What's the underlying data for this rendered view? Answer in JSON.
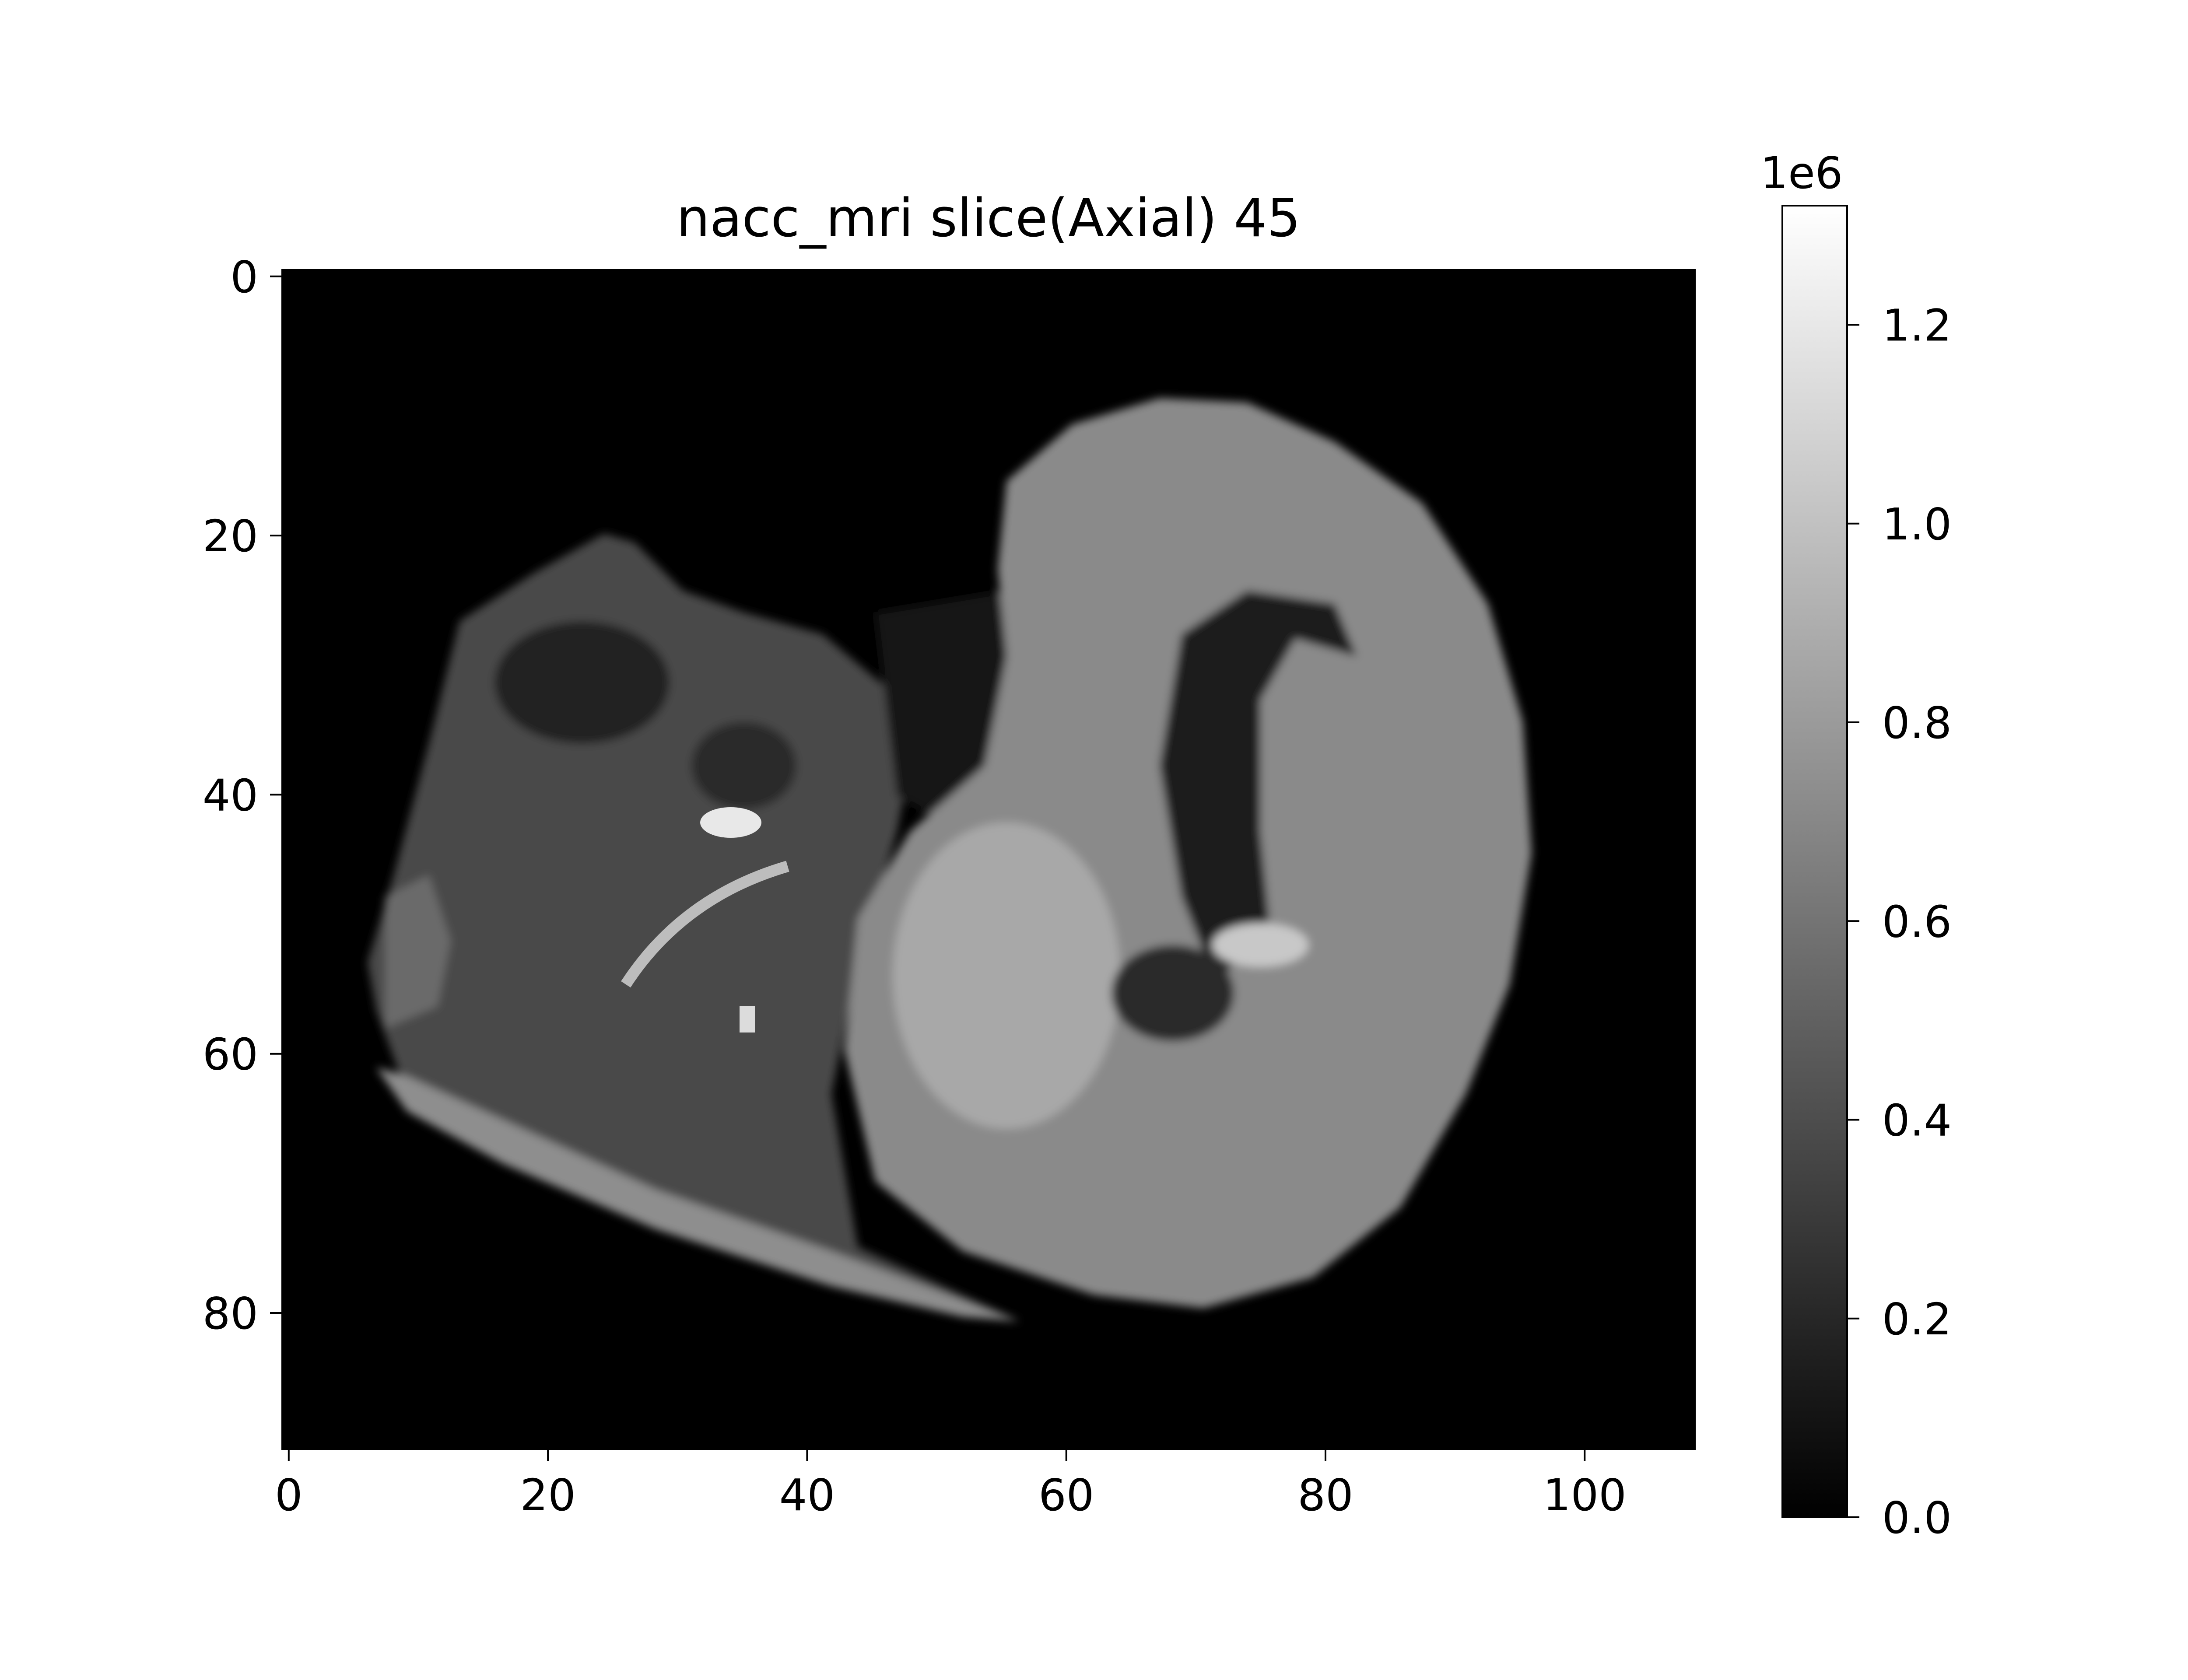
{
  "chart_data": {
    "type": "heatmap",
    "title": "nacc_mri slice(Axial) 45",
    "colormap": "gray",
    "image_shape": [
      91,
      109
    ],
    "x_ticks": [
      "0",
      "20",
      "40",
      "60",
      "80",
      "100"
    ],
    "y_ticks": [
      "0",
      "20",
      "40",
      "60",
      "80"
    ],
    "x_tick_values": [
      0,
      20,
      40,
      60,
      80,
      100
    ],
    "y_tick_values": [
      0,
      20,
      40,
      60,
      80
    ],
    "xlim": [
      -0.5,
      108.5
    ],
    "ylim": [
      90.5,
      -0.5
    ],
    "colorbar": {
      "range": [
        0,
        1.32
      ],
      "ticks": [
        "0.0",
        "0.2",
        "0.4",
        "0.6",
        "0.8",
        "1.0",
        "1.2"
      ],
      "tick_values": [
        0.0,
        0.2,
        0.4,
        0.6,
        0.8,
        1.0,
        1.2
      ],
      "offset_label": "1e6"
    }
  }
}
